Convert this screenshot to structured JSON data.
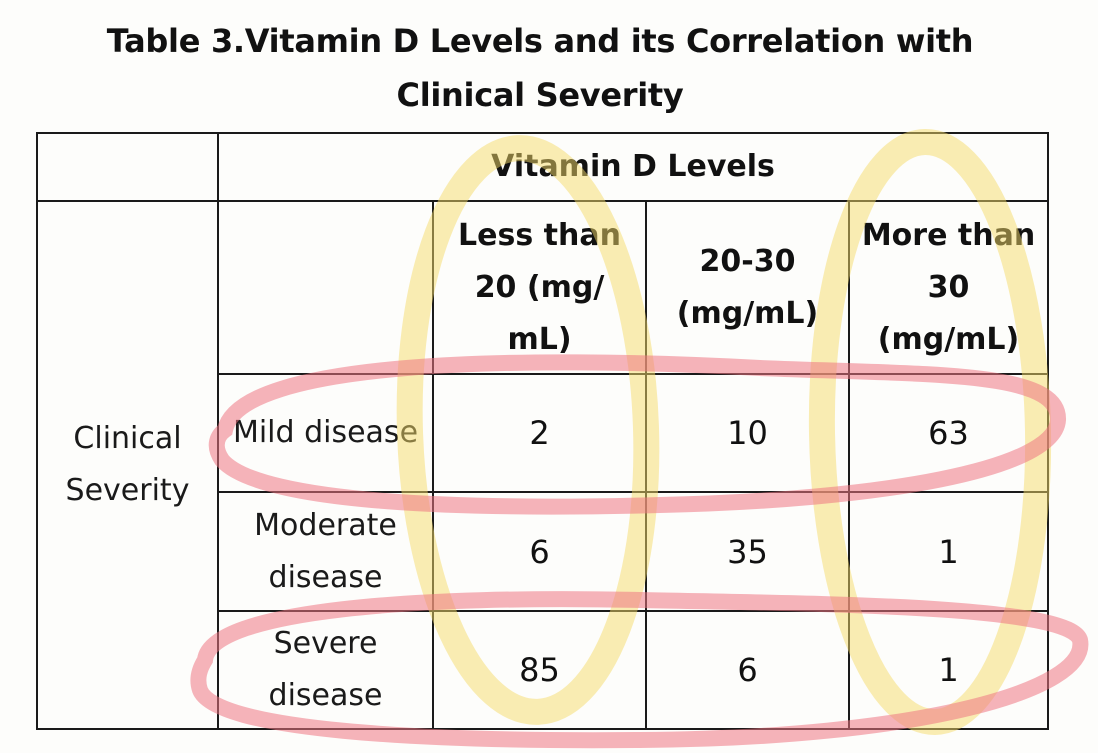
{
  "title": {
    "line1": "Table 3.Vitamin D Levels and its Correlation with",
    "line2": "Clinical Severity"
  },
  "table": {
    "group_header": "Vitamin D Levels",
    "row_group_label": "Clinical Severity",
    "columns": [
      "Less than 20 (mg/ mL)",
      "20-30 (mg/mL)",
      "More than 30 (mg/mL)"
    ],
    "rows": [
      {
        "label": "Mild disease",
        "values": [
          "2",
          "10",
          "63"
        ]
      },
      {
        "label": "Moderate disease",
        "values": [
          "6",
          "35",
          "1"
        ]
      },
      {
        "label": "Severe disease",
        "values": [
          "85",
          "6",
          "1"
        ]
      }
    ]
  },
  "highlight_colors": {
    "yellow": "#f5dc6a",
    "pink": "#ef7683"
  }
}
